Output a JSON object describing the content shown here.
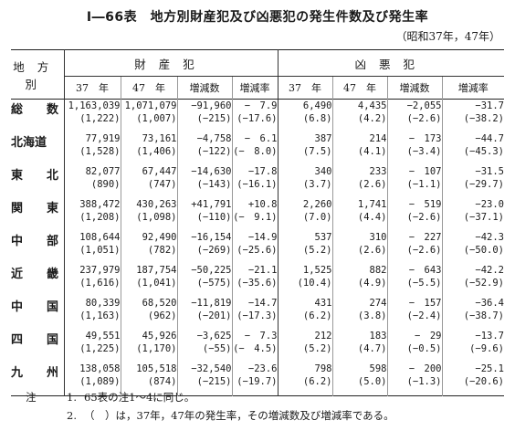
{
  "title": "Ⅰ―66表　地方別財産犯及び凶悪犯の発生件数及び発生率",
  "subtitle": "（昭和37年，47年）",
  "header": {
    "region": "地方別",
    "group1": "財産犯",
    "group2": "凶悪犯",
    "cols": [
      "37　年",
      "47　年",
      "増減数",
      "増減率",
      "37　年",
      "47　年",
      "増減数",
      "増減率"
    ]
  },
  "rows": [
    {
      "region": "総　　数",
      "v": [
        "1,163,039",
        "1,071,079",
        "−91,960",
        "−　7.9",
        "6,490",
        "4,435",
        "−2,055",
        "−31.7"
      ],
      "p": [
        "(1,222)",
        "(1,007)",
        "(−215)",
        "(−17.6)",
        "(6.8)",
        "(4.2)",
        "(−2.6)",
        "(−38.2)"
      ]
    },
    {
      "region": "北海道",
      "v": [
        "77,919",
        "73,161",
        "−4,758",
        "−　6.1",
        "387",
        "214",
        "−　173",
        "−44.7"
      ],
      "p": [
        "(1,528)",
        "(1,406)",
        "(−122)",
        "(−　8.0)",
        "(7.5)",
        "(4.1)",
        "(−3.4)",
        "(−45.3)"
      ]
    },
    {
      "region": "東　　北",
      "v": [
        "82,077",
        "67,447",
        "−14,630",
        "−17.8",
        "340",
        "233",
        "−　107",
        "−31.5"
      ],
      "p": [
        "(890)",
        "(747)",
        "(−143)",
        "(−16.1)",
        "(3.7)",
        "(2.6)",
        "(−1.1)",
        "(−29.7)"
      ]
    },
    {
      "region": "関　　東",
      "v": [
        "388,472",
        "430,263",
        "+41,791",
        "+10.8",
        "2,260",
        "1,741",
        "−　519",
        "−23.0"
      ],
      "p": [
        "(1,208)",
        "(1,098)",
        "(−110)",
        "(−　9.1)",
        "(7.0)",
        "(4.4)",
        "(−2.6)",
        "(−37.1)"
      ]
    },
    {
      "region": "中　　部",
      "v": [
        "108,644",
        "92,490",
        "−16,154",
        "−14.9",
        "537",
        "310",
        "−　227",
        "−42.3"
      ],
      "p": [
        "(1,051)",
        "(782)",
        "(−269)",
        "(−25.6)",
        "(5.2)",
        "(2.6)",
        "(−2.6)",
        "(−50.0)"
      ]
    },
    {
      "region": "近　　畿",
      "v": [
        "237,979",
        "187,754",
        "−50,225",
        "−21.1",
        "1,525",
        "882",
        "−　643",
        "−42.2"
      ],
      "p": [
        "(1,616)",
        "(1,041)",
        "(−575)",
        "(−35.6)",
        "(10.4)",
        "(4.9)",
        "(−5.5)",
        "(−52.9)"
      ]
    },
    {
      "region": "中　　国",
      "v": [
        "80,339",
        "68,520",
        "−11,819",
        "−14.7",
        "431",
        "274",
        "−　157",
        "−36.4"
      ],
      "p": [
        "(1,163)",
        "(962)",
        "(−201)",
        "(−17.3)",
        "(6.2)",
        "(3.8)",
        "(−2.4)",
        "(−38.7)"
      ]
    },
    {
      "region": "四　　国",
      "v": [
        "49,551",
        "45,926",
        "−3,625",
        "−　7.3",
        "212",
        "183",
        "−　29",
        "−13.7"
      ],
      "p": [
        "(1,225)",
        "(1,170)",
        "(−55)",
        "(−　4.5)",
        "(5.2)",
        "(4.7)",
        "(−0.5)",
        "(−9.6)"
      ]
    },
    {
      "region": "九　　州",
      "v": [
        "138,058",
        "105,518",
        "−32,540",
        "−23.6",
        "798",
        "598",
        "−　200",
        "−25.1"
      ],
      "p": [
        "(1,089)",
        "(874)",
        "(−215)",
        "(−19.7)",
        "(6.2)",
        "(5.0)",
        "(−1.3)",
        "(−20.6)"
      ]
    }
  ],
  "notes": {
    "label": "注",
    "items": [
      {
        "n": "1.",
        "text": "65表の注1～4に同じ。"
      },
      {
        "n": "2.",
        "text": "（　）は，37年，47年の発生率，その増減数及び増減率である。"
      }
    ]
  }
}
